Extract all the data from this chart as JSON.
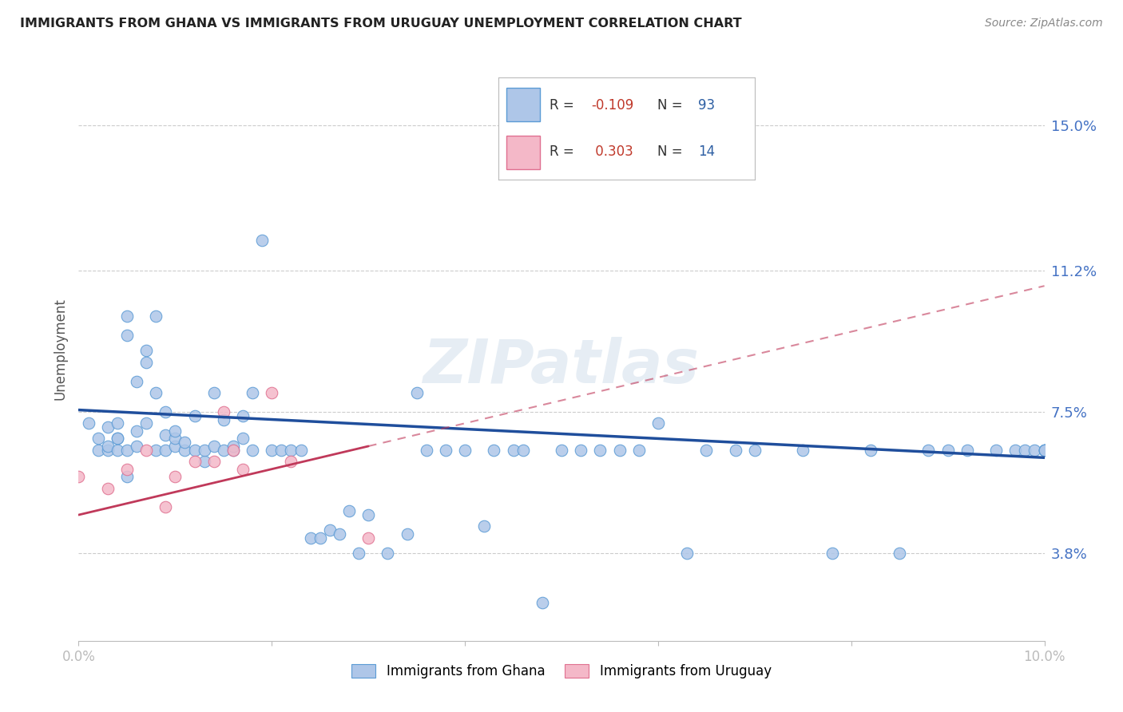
{
  "title": "IMMIGRANTS FROM GHANA VS IMMIGRANTS FROM URUGUAY UNEMPLOYMENT CORRELATION CHART",
  "source": "Source: ZipAtlas.com",
  "ylabel": "Unemployment",
  "ytick_labels": [
    "15.0%",
    "11.2%",
    "7.5%",
    "3.8%"
  ],
  "ytick_values": [
    0.15,
    0.112,
    0.075,
    0.038
  ],
  "xlim": [
    0.0,
    0.1
  ],
  "ylim": [
    0.015,
    0.168
  ],
  "ghana_color": "#aec6e8",
  "ghana_edge_color": "#5b9bd5",
  "uruguay_color": "#f4b8c8",
  "uruguay_edge_color": "#e07090",
  "ghana_line_color": "#1f4e9c",
  "uruguay_line_color": "#c0395a",
  "r_ghana": "-0.109",
  "n_ghana": "93",
  "r_uruguay": "0.303",
  "n_uruguay": "14",
  "watermark": "ZIPatlas",
  "ghana_line_x0": 0.0,
  "ghana_line_y0": 0.0755,
  "ghana_line_x1": 0.1,
  "ghana_line_y1": 0.063,
  "uruguay_line_x0": 0.0,
  "uruguay_line_y0": 0.048,
  "uruguay_line_x1": 0.1,
  "uruguay_line_y1": 0.108,
  "ghana_x": [
    0.001,
    0.002,
    0.002,
    0.003,
    0.003,
    0.003,
    0.004,
    0.004,
    0.004,
    0.004,
    0.005,
    0.005,
    0.005,
    0.005,
    0.006,
    0.006,
    0.006,
    0.007,
    0.007,
    0.007,
    0.008,
    0.008,
    0.008,
    0.009,
    0.009,
    0.009,
    0.01,
    0.01,
    0.01,
    0.011,
    0.011,
    0.012,
    0.012,
    0.013,
    0.013,
    0.014,
    0.014,
    0.015,
    0.015,
    0.016,
    0.016,
    0.017,
    0.017,
    0.018,
    0.018,
    0.019,
    0.02,
    0.021,
    0.022,
    0.023,
    0.024,
    0.025,
    0.026,
    0.027,
    0.028,
    0.029,
    0.03,
    0.032,
    0.034,
    0.035,
    0.036,
    0.038,
    0.04,
    0.042,
    0.043,
    0.045,
    0.046,
    0.048,
    0.05,
    0.052,
    0.054,
    0.056,
    0.058,
    0.06,
    0.063,
    0.065,
    0.068,
    0.07,
    0.075,
    0.078,
    0.082,
    0.085,
    0.088,
    0.09,
    0.092,
    0.095,
    0.097,
    0.098,
    0.099,
    0.1,
    0.1,
    0.1,
    0.1
  ],
  "ghana_y": [
    0.072,
    0.065,
    0.068,
    0.071,
    0.065,
    0.066,
    0.068,
    0.065,
    0.068,
    0.072,
    0.058,
    0.065,
    0.1,
    0.095,
    0.066,
    0.07,
    0.083,
    0.072,
    0.091,
    0.088,
    0.065,
    0.08,
    0.1,
    0.065,
    0.069,
    0.075,
    0.066,
    0.068,
    0.07,
    0.065,
    0.067,
    0.074,
    0.065,
    0.062,
    0.065,
    0.066,
    0.08,
    0.065,
    0.073,
    0.065,
    0.066,
    0.068,
    0.074,
    0.065,
    0.08,
    0.12,
    0.065,
    0.065,
    0.065,
    0.065,
    0.042,
    0.042,
    0.044,
    0.043,
    0.049,
    0.038,
    0.048,
    0.038,
    0.043,
    0.08,
    0.065,
    0.065,
    0.065,
    0.045,
    0.065,
    0.065,
    0.065,
    0.025,
    0.065,
    0.065,
    0.065,
    0.065,
    0.065,
    0.072,
    0.038,
    0.065,
    0.065,
    0.065,
    0.065,
    0.038,
    0.065,
    0.038,
    0.065,
    0.065,
    0.065,
    0.065,
    0.065,
    0.065,
    0.065,
    0.065,
    0.065,
    0.065,
    0.065
  ],
  "uruguay_x": [
    0.0,
    0.003,
    0.005,
    0.007,
    0.009,
    0.01,
    0.012,
    0.014,
    0.015,
    0.016,
    0.017,
    0.02,
    0.022,
    0.03
  ],
  "uruguay_y": [
    0.058,
    0.055,
    0.06,
    0.065,
    0.05,
    0.058,
    0.062,
    0.062,
    0.075,
    0.065,
    0.06,
    0.08,
    0.062,
    0.042
  ]
}
